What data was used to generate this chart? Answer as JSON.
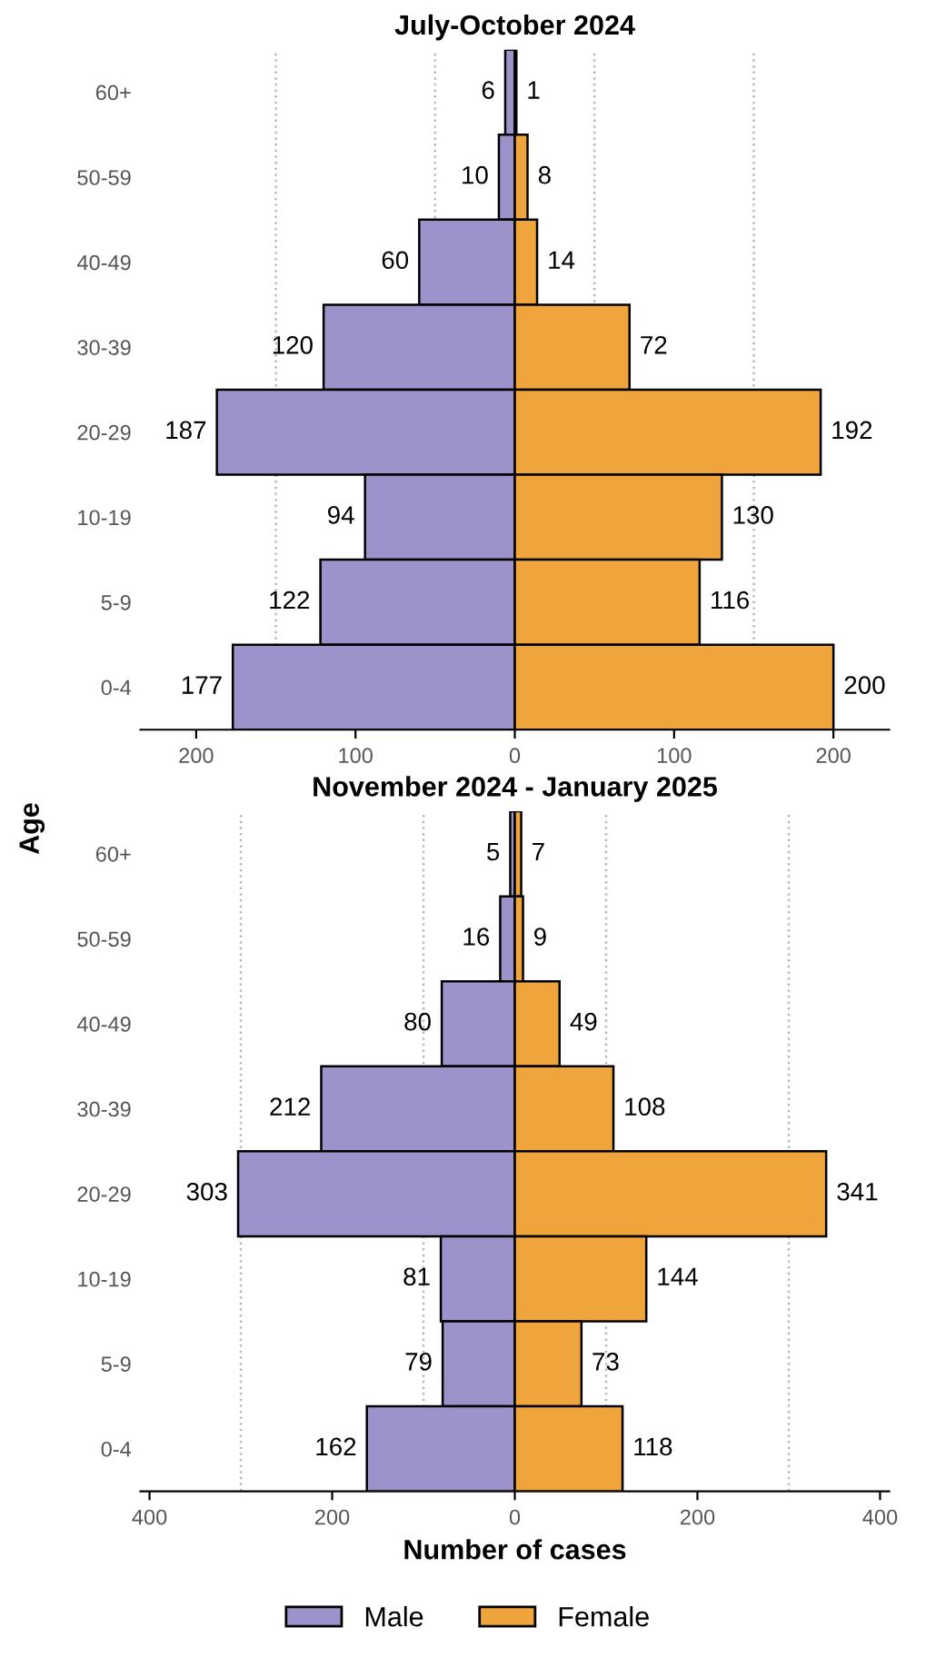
{
  "chart_data": [
    {
      "type": "bar",
      "orientation": "horizontal",
      "title": "July-October 2024",
      "ylabel": "Age",
      "categories": [
        "60+",
        "50-59",
        "40-49",
        "30-39",
        "20-29",
        "10-19",
        "5-9",
        "0-4"
      ],
      "series": [
        {
          "name": "Male",
          "color": "#9d92c9",
          "values": [
            6,
            10,
            60,
            120,
            187,
            94,
            122,
            177
          ],
          "base": [
            -6,
            -10,
            -60,
            -120,
            -187,
            -94,
            -122,
            -177
          ],
          "value_labels": [
            "6",
            "10",
            "60",
            "120",
            "187",
            "94",
            "122",
            "177"
          ]
        },
        {
          "name": "Female",
          "color": "#f0a43c",
          "values": [
            1,
            8,
            14,
            72,
            192,
            130,
            116,
            200
          ],
          "value_labels": [
            "1",
            "8",
            "14",
            "72",
            "192",
            "130",
            "116",
            "200"
          ]
        }
      ],
      "xlim": [
        -235,
        235
      ],
      "xticks": [
        {
          "value": -200,
          "label": "200"
        },
        {
          "value": -100,
          "label": "100"
        },
        0,
        100,
        200
      ],
      "ref_lines": [
        {
          "axis": "x",
          "value": -150,
          "color": "#bbbbbb",
          "line_style": "dotted"
        },
        {
          "axis": "x",
          "value": -50,
          "color": "#bbbbbb",
          "line_style": "dotted"
        },
        {
          "axis": "x",
          "value": 50,
          "color": "#bbbbbb",
          "line_style": "dotted"
        },
        {
          "axis": "x",
          "value": 150,
          "color": "#bbbbbb",
          "line_style": "dotted"
        }
      ],
      "legend": "bottom"
    },
    {
      "type": "bar",
      "orientation": "horizontal",
      "title": "November 2024 - January 2025",
      "xlabel": "Number of cases",
      "categories": [
        "60+",
        "50-59",
        "40-49",
        "30-39",
        "20-29",
        "10-19",
        "5-9",
        "0-4"
      ],
      "series": [
        {
          "color": "#9d92c9",
          "values": [
            5,
            16,
            80,
            212,
            303,
            81,
            79,
            162
          ],
          "base": [
            -5,
            -16,
            -80,
            -212,
            -303,
            -81,
            -79,
            -162
          ],
          "value_labels": [
            "5",
            "16",
            "80",
            "212",
            "303",
            "81",
            "79",
            "162"
          ]
        },
        {
          "color": "#f0a43c",
          "values": [
            7,
            9,
            49,
            108,
            341,
            144,
            73,
            118
          ],
          "value_labels": [
            "7",
            "9",
            "49",
            "108",
            "341",
            "144",
            "73",
            "118"
          ]
        }
      ],
      "xlim": [
        -410,
        410
      ],
      "xticks": [
        {
          "value": -400,
          "label": "400"
        },
        {
          "value": -200,
          "label": "200"
        },
        0,
        200,
        400
      ],
      "ref_lines": [
        {
          "axis": "x",
          "value": -300,
          "color": "#bbbbbb",
          "line_style": "dotted"
        },
        {
          "axis": "x",
          "value": -100,
          "color": "#bbbbbb",
          "line_style": "dotted"
        },
        {
          "axis": "x",
          "value": 100,
          "color": "#bbbbbb",
          "line_style": "dotted"
        },
        {
          "axis": "x",
          "value": 300,
          "color": "#bbbbbb",
          "line_style": "dotted"
        }
      ]
    }
  ]
}
